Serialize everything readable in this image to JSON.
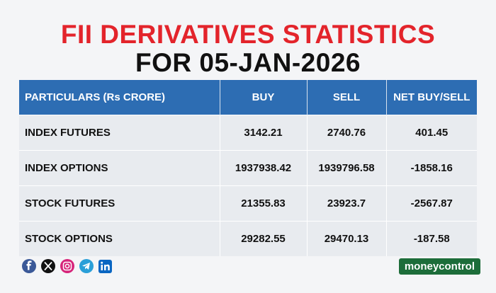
{
  "header": {
    "title_line1": "FII DERIVATIVES STATISTICS",
    "title_line2": "FOR 05-JAN-2026"
  },
  "table": {
    "columns": [
      "PARTICULARS (Rs CRORE)",
      "BUY",
      "SELL",
      "NET BUY/SELL"
    ],
    "rows": [
      [
        "INDEX FUTURES",
        "3142.21",
        "2740.76",
        "401.45"
      ],
      [
        "INDEX OPTIONS",
        "1937938.42",
        "1939796.58",
        "-1858.16"
      ],
      [
        "STOCK FUTURES",
        "21355.83",
        "23923.7",
        "-2567.87"
      ],
      [
        "STOCK OPTIONS",
        "29282.55",
        "29470.13",
        "-187.58"
      ]
    ]
  },
  "footer": {
    "brand": "moneycontrol"
  }
}
